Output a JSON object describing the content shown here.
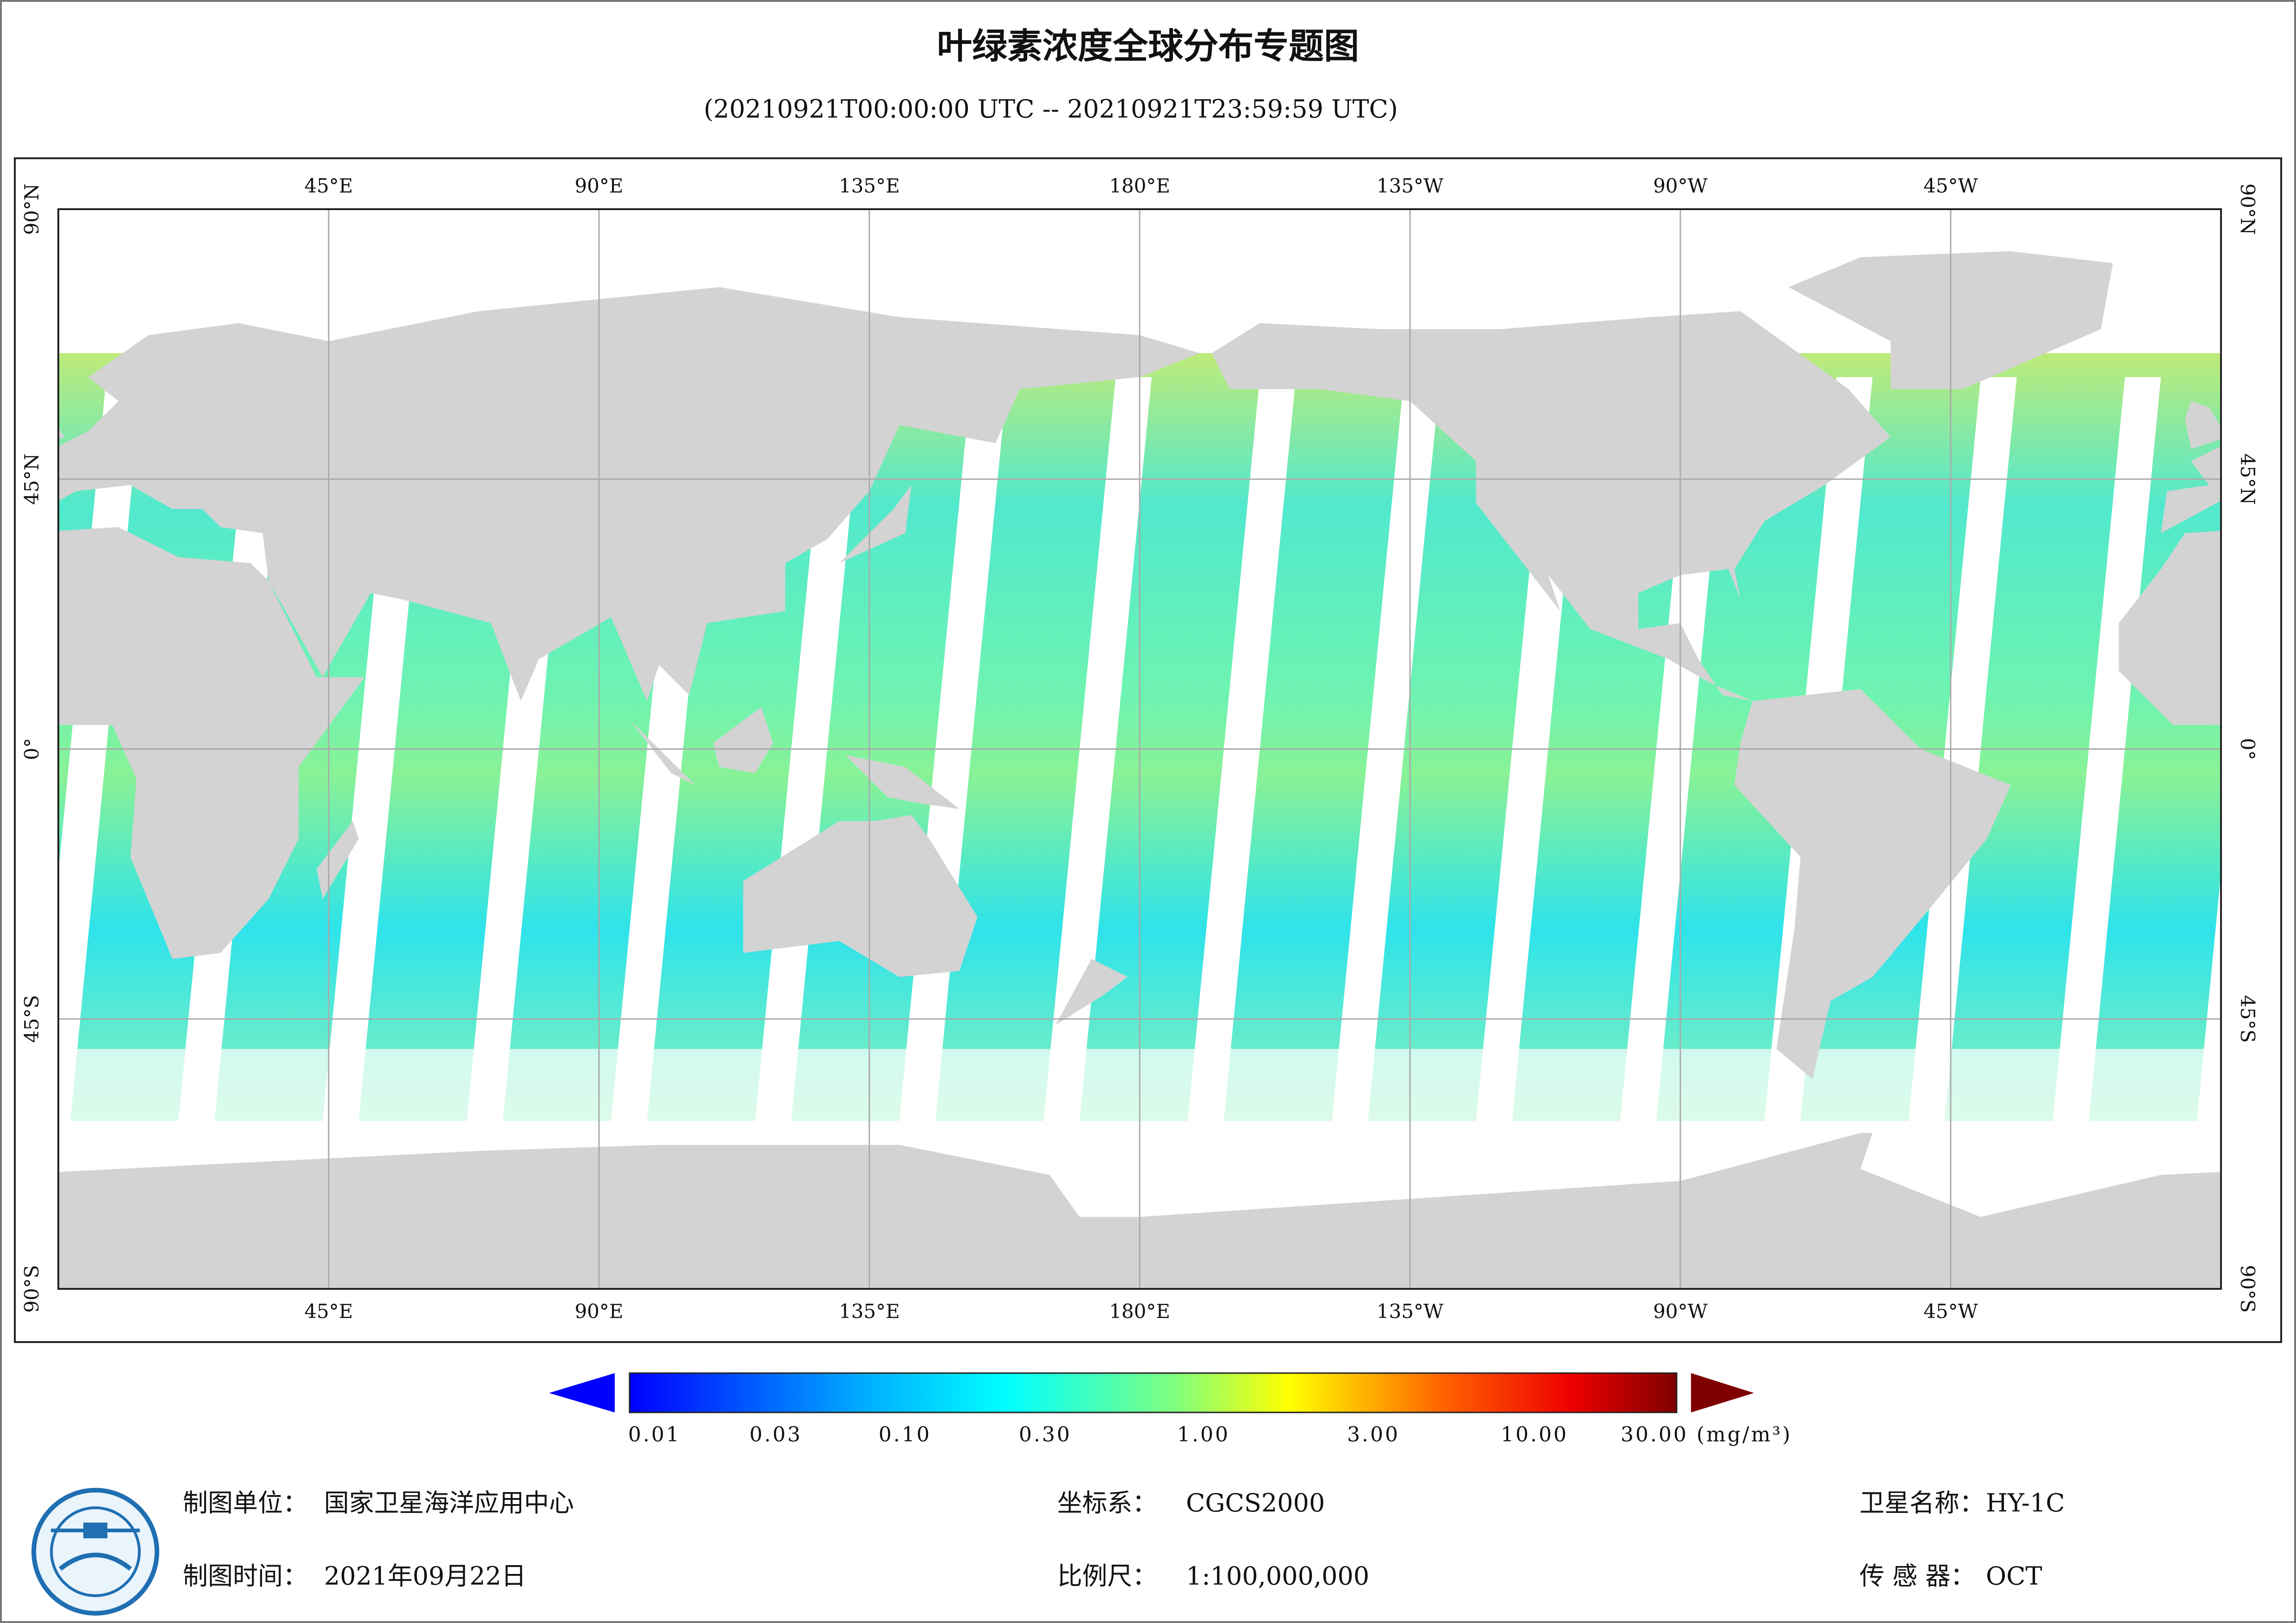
{
  "header": {
    "title": "叶绿素浓度全球分布专题图",
    "subtitle": "(20210921T00:00:00 UTC -- 20210921T23:59:59 UTC)"
  },
  "map": {
    "lon_labels": [
      "45°E",
      "90°E",
      "135°E",
      "180°E",
      "135°W",
      "90°W",
      "45°W"
    ],
    "lat_labels": [
      "90°N",
      "45°N",
      "0°",
      "45°S",
      "90°S"
    ]
  },
  "colorbar": {
    "tick_labels": [
      "0.01",
      "0.03",
      "0.10",
      "0.30",
      "1.00",
      "3.00",
      "10.00",
      "30.00"
    ],
    "unit": "(mg/m³)"
  },
  "footer": {
    "items": [
      {
        "label": "制图单位：",
        "value": "国家卫星海洋应用中心"
      },
      {
        "label": "制图时间：",
        "value": "2021年09月22日"
      },
      {
        "label": "坐标系：",
        "value": "CGCS2000"
      },
      {
        "label": "比例尺：",
        "value": "1:100,000,000"
      },
      {
        "label": "卫星名称：",
        "value": "HY-1C"
      },
      {
        "label": "传 感 器：",
        "value": "OCT"
      }
    ]
  }
}
